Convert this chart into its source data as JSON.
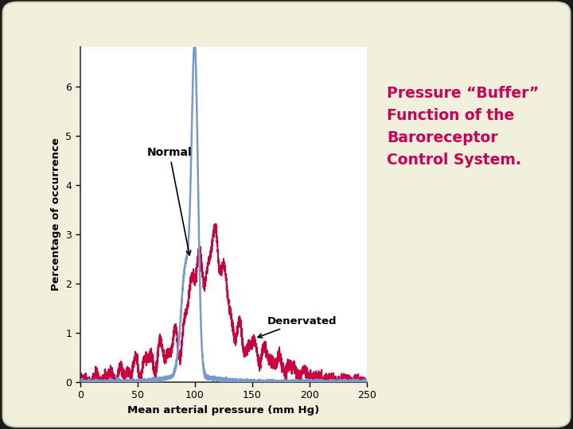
{
  "title": "Pressure “Buffer”\nFunction of the\nBaroreceptor\nControl System.",
  "title_color": "#CC0055",
  "xlabel": "Mean arterial pressure (mm Hg)",
  "ylabel": "Percentage of occurrence",
  "xlim": [
    0,
    250
  ],
  "ylim": [
    0,
    6.8
  ],
  "xticks": [
    0,
    50,
    100,
    150,
    200,
    250
  ],
  "yticks": [
    0,
    1,
    2,
    3,
    4,
    5,
    6
  ],
  "normal_color": "#7799CC",
  "denervated_color": "#CC003A",
  "bg_outer": "#1a1a1a",
  "bg_panel": "#f0f0dc",
  "bg_plot": "#ffffff",
  "normal_label": "Normal",
  "denervated_label": "Denervated"
}
